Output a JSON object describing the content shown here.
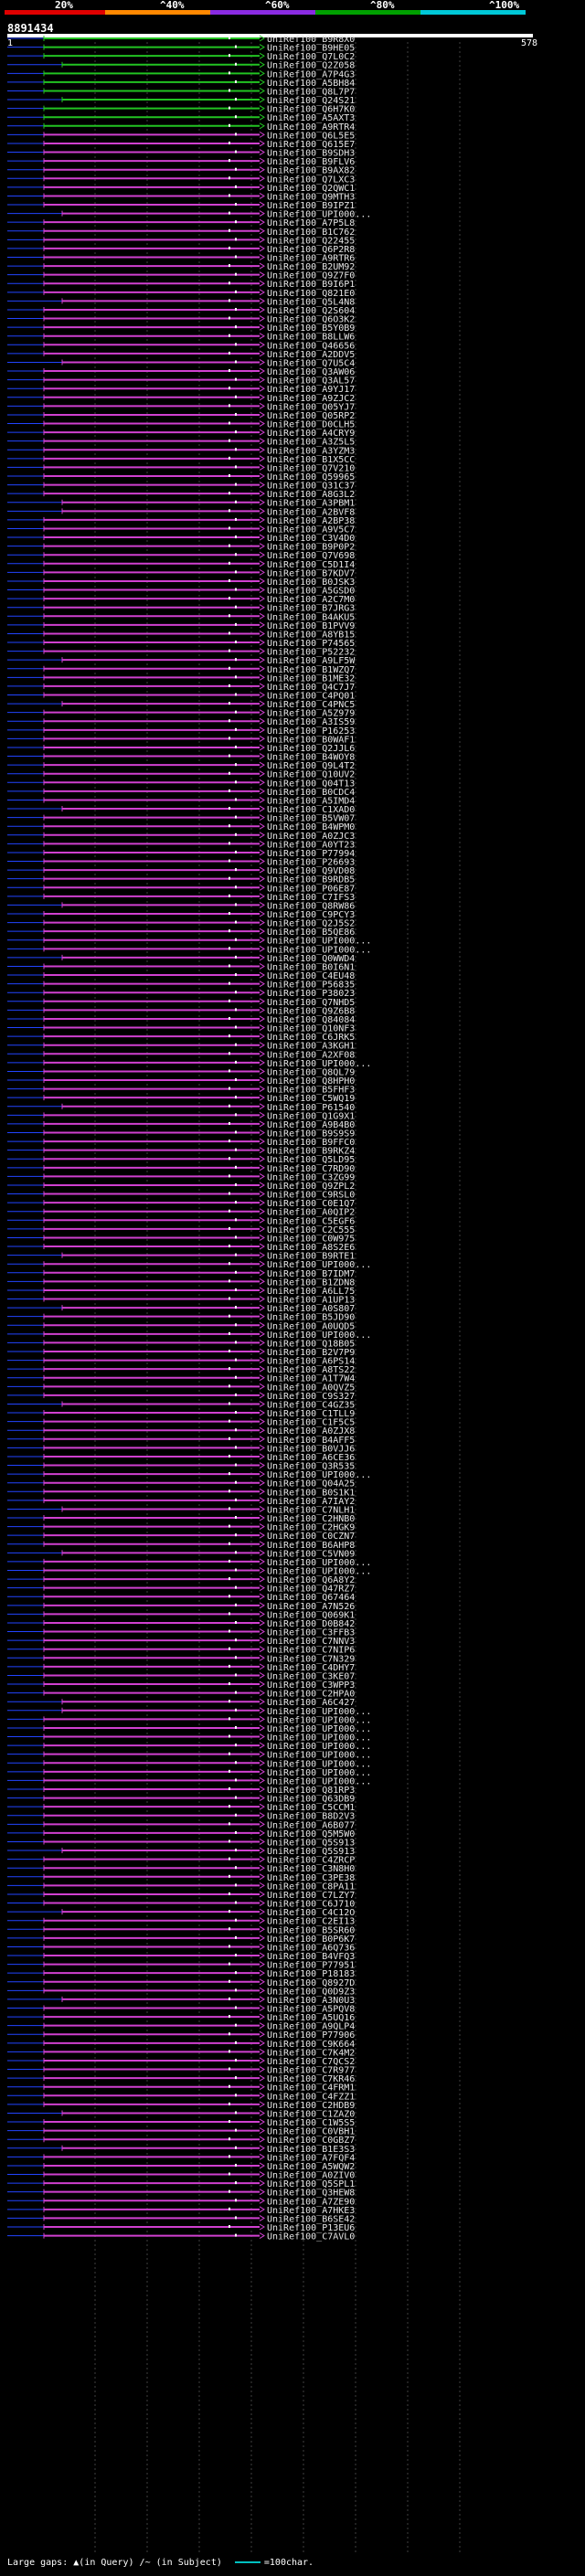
{
  "scale": {
    "ticks": [
      {
        "label": "20%",
        "color": "#e00000"
      },
      {
        "label": "^40%",
        "color": "#ff8800"
      },
      {
        "label": "^60%",
        "color": "#8a2be2"
      },
      {
        "label": "^80%",
        "color": "#00a000"
      },
      {
        "label": "^100%",
        "color": "#00c8d8"
      }
    ]
  },
  "query": {
    "id": "8891434",
    "start": "1",
    "end": "578"
  },
  "colors": {
    "green_hit": "#22c322",
    "purple_hit": "#d040d0",
    "gap": "#2244ff",
    "background": "#000000",
    "gridline": "#404040"
  },
  "hits": [
    {
      "label": "UniRef100_B9R8X0",
      "color": "green"
    },
    {
      "label": "UniRef100_B9HE05",
      "color": "green"
    },
    {
      "label": "UniRef100_Q7L0C2",
      "color": "green"
    },
    {
      "label": "UniRef100_Q2Z058",
      "color": "green"
    },
    {
      "label": "UniRef100_A7P4G3",
      "color": "green"
    },
    {
      "label": "UniRef100_A5BH84",
      "color": "green"
    },
    {
      "label": "UniRef100_Q8L7P7",
      "color": "green"
    },
    {
      "label": "UniRef100_Q24S21",
      "color": "green"
    },
    {
      "label": "UniRef100_Q6H7K0",
      "color": "green"
    },
    {
      "label": "UniRef100_A5AXT3",
      "color": "green"
    },
    {
      "label": "UniRef100_A9RTR4",
      "color": "green"
    },
    {
      "label": "UniRef100_Q6L5E5",
      "color": "purple"
    },
    {
      "label": "UniRef100_Q615E7",
      "color": "purple"
    },
    {
      "label": "UniRef100_B9SDH3",
      "color": "purple"
    },
    {
      "label": "UniRef100_B9FLV6",
      "color": "purple"
    },
    {
      "label": "UniRef100_B9AX82",
      "color": "purple"
    },
    {
      "label": "UniRef100_Q7LXC3",
      "color": "purple"
    },
    {
      "label": "UniRef100_Q2QWC1",
      "color": "purple"
    },
    {
      "label": "UniRef100_Q9MTH3",
      "color": "purple"
    },
    {
      "label": "UniRef100_B9IPZ1",
      "color": "purple"
    },
    {
      "label": "UniRef100_UPI000...",
      "color": "purple"
    },
    {
      "label": "UniRef100_A7P5L8",
      "color": "purple"
    },
    {
      "label": "UniRef100_B1C762",
      "color": "purple"
    },
    {
      "label": "UniRef100_Q22455",
      "color": "purple"
    },
    {
      "label": "UniRef100_Q6P2R8",
      "color": "purple"
    },
    {
      "label": "UniRef100_A9RTR6",
      "color": "purple"
    },
    {
      "label": "UniRef100_B2UM92",
      "color": "purple"
    },
    {
      "label": "UniRef100_Q9Z7F0",
      "color": "purple"
    },
    {
      "label": "UniRef100_B9I6P1",
      "color": "purple"
    },
    {
      "label": "UniRef100_Q821E0",
      "color": "purple"
    },
    {
      "label": "UniRef100_Q5L4N8",
      "color": "purple"
    },
    {
      "label": "UniRef100_Q2S604",
      "color": "purple"
    },
    {
      "label": "UniRef100_Q6O3K2",
      "color": "purple"
    },
    {
      "label": "UniRef100_B5Y0B9",
      "color": "purple"
    },
    {
      "label": "UniRef100_B8LLW6",
      "color": "purple"
    },
    {
      "label": "UniRef100_Q46656",
      "color": "purple"
    },
    {
      "label": "UniRef100_A2DDV5",
      "color": "purple"
    },
    {
      "label": "UniRef100_Q7U5C4",
      "color": "purple"
    },
    {
      "label": "UniRef100_Q3AW06",
      "color": "purple"
    },
    {
      "label": "UniRef100_Q3AL57",
      "color": "purple"
    },
    {
      "label": "UniRef100_A9YJ17",
      "color": "purple"
    },
    {
      "label": "UniRef100_A9ZJC2",
      "color": "purple"
    },
    {
      "label": "UniRef100_Q05YJ7",
      "color": "purple"
    },
    {
      "label": "UniRef100_Q05RP2",
      "color": "purple"
    },
    {
      "label": "UniRef100_D0CLH5",
      "color": "purple"
    },
    {
      "label": "UniRef100_A4CRY9",
      "color": "purple"
    },
    {
      "label": "UniRef100_A3Z5L5",
      "color": "purple"
    },
    {
      "label": "UniRef100_A3YZM3",
      "color": "purple"
    },
    {
      "label": "UniRef100_B1X5CC",
      "color": "purple"
    },
    {
      "label": "UniRef100_Q7V210",
      "color": "purple"
    },
    {
      "label": "UniRef100_Q59965",
      "color": "purple"
    },
    {
      "label": "UniRef100_Q31C37",
      "color": "purple"
    },
    {
      "label": "UniRef100_A8G3L2",
      "color": "purple"
    },
    {
      "label": "UniRef100_A3PBM1",
      "color": "purple"
    },
    {
      "label": "UniRef100_A2BVF8",
      "color": "purple"
    },
    {
      "label": "UniRef100_A2BP38",
      "color": "purple"
    },
    {
      "label": "UniRef100_A9V5C7",
      "color": "purple"
    },
    {
      "label": "UniRef100_C3V4D0",
      "color": "purple"
    },
    {
      "label": "UniRef100_B9P0P2",
      "color": "purple"
    },
    {
      "label": "UniRef100_Q7V698",
      "color": "purple"
    },
    {
      "label": "UniRef100_C5D1I4",
      "color": "purple"
    },
    {
      "label": "UniRef100_B7KDV7",
      "color": "purple"
    },
    {
      "label": "UniRef100_B0JSK3",
      "color": "purple"
    },
    {
      "label": "UniRef100_A5GSD0",
      "color": "purple"
    },
    {
      "label": "UniRef100_A2C7M0",
      "color": "purple"
    },
    {
      "label": "UniRef100_B7JRG3",
      "color": "purple"
    },
    {
      "label": "UniRef100_B4AKU5",
      "color": "purple"
    },
    {
      "label": "UniRef100_B1PVV9",
      "color": "purple"
    },
    {
      "label": "UniRef100_A8YB15",
      "color": "purple"
    },
    {
      "label": "UniRef100_P74565",
      "color": "purple"
    },
    {
      "label": "UniRef100_P52232",
      "color": "purple"
    },
    {
      "label": "UniRef100_A9LF5W",
      "color": "purple"
    },
    {
      "label": "UniRef100_B1WZQ7",
      "color": "purple"
    },
    {
      "label": "UniRef100_B1ME32",
      "color": "purple"
    },
    {
      "label": "UniRef100_Q4C7J7",
      "color": "purple"
    },
    {
      "label": "UniRef100_C4PQ01",
      "color": "purple"
    },
    {
      "label": "UniRef100_C4PNC5",
      "color": "purple"
    },
    {
      "label": "UniRef100_A5Z979",
      "color": "purple"
    },
    {
      "label": "UniRef100_A3IS59",
      "color": "purple"
    },
    {
      "label": "UniRef100_P16253",
      "color": "purple"
    },
    {
      "label": "UniRef100_B0WAF1",
      "color": "purple"
    },
    {
      "label": "UniRef100_Q2JJL6",
      "color": "purple"
    },
    {
      "label": "UniRef100_B4WOY8",
      "color": "purple"
    },
    {
      "label": "UniRef100_Q9L4T2",
      "color": "purple"
    },
    {
      "label": "UniRef100_Q10UV2",
      "color": "purple"
    },
    {
      "label": "UniRef100_Q04T13",
      "color": "purple"
    },
    {
      "label": "UniRef100_B0CDC4",
      "color": "purple"
    },
    {
      "label": "UniRef100_A5IMD4",
      "color": "purple"
    },
    {
      "label": "UniRef100_C1XAD0",
      "color": "purple"
    },
    {
      "label": "UniRef100_B5VW07",
      "color": "purple"
    },
    {
      "label": "UniRef100_B4WPM0",
      "color": "purple"
    },
    {
      "label": "UniRef100_A0ZJC3",
      "color": "purple"
    },
    {
      "label": "UniRef100_A0YT23",
      "color": "purple"
    },
    {
      "label": "UniRef100_P77994",
      "color": "purple"
    },
    {
      "label": "UniRef100_P26693",
      "color": "purple"
    },
    {
      "label": "UniRef100_Q9VD08",
      "color": "purple"
    },
    {
      "label": "UniRef100_B9RDB5",
      "color": "purple"
    },
    {
      "label": "UniRef100_P06E87",
      "color": "purple"
    },
    {
      "label": "UniRef100_C7IFS3",
      "color": "purple"
    },
    {
      "label": "UniRef100_Q8RW86",
      "color": "purple"
    },
    {
      "label": "UniRef100_C9PCY3",
      "color": "purple"
    },
    {
      "label": "UniRef100_Q2J5S2",
      "color": "purple"
    },
    {
      "label": "UniRef100_B5QE86",
      "color": "purple"
    },
    {
      "label": "UniRef100_UPI000...",
      "color": "purple"
    },
    {
      "label": "UniRef100_UPI000...",
      "color": "purple"
    },
    {
      "label": "UniRef100_Q0WWD4",
      "color": "purple"
    },
    {
      "label": "UniRef100_B0I6N1",
      "color": "purple"
    },
    {
      "label": "UniRef100_C4EU48",
      "color": "purple"
    },
    {
      "label": "UniRef100_P56835",
      "color": "purple"
    },
    {
      "label": "UniRef100_P38023",
      "color": "purple"
    },
    {
      "label": "UniRef100_Q7NHD5",
      "color": "purple"
    },
    {
      "label": "UniRef100_Q9Z6B8",
      "color": "purple"
    },
    {
      "label": "UniRef100_Q84084",
      "color": "purple"
    },
    {
      "label": "UniRef100_Q10NF3",
      "color": "purple"
    },
    {
      "label": "UniRef100_C6JRK5",
      "color": "purple"
    },
    {
      "label": "UniRef100_A3KGH1",
      "color": "purple"
    },
    {
      "label": "UniRef100_A2XF08",
      "color": "purple"
    },
    {
      "label": "UniRef100_UPI000...",
      "color": "purple"
    },
    {
      "label": "UniRef100_Q8QL79",
      "color": "purple"
    },
    {
      "label": "UniRef100_Q8HPH0",
      "color": "purple"
    },
    {
      "label": "UniRef100_B5FHF3",
      "color": "purple"
    },
    {
      "label": "UniRef100_C5WQ19",
      "color": "purple"
    },
    {
      "label": "UniRef100_P61540",
      "color": "purple"
    },
    {
      "label": "UniRef100_Q1G9X1",
      "color": "purple"
    },
    {
      "label": "UniRef100_A9B4B0",
      "color": "purple"
    },
    {
      "label": "UniRef100_B9S9S9",
      "color": "purple"
    },
    {
      "label": "UniRef100_B9FFC0",
      "color": "purple"
    },
    {
      "label": "UniRef100_B9RKZ4",
      "color": "purple"
    },
    {
      "label": "UniRef100_Q5LD95",
      "color": "purple"
    },
    {
      "label": "UniRef100_C7RD90",
      "color": "purple"
    },
    {
      "label": "UniRef100_C3ZG99",
      "color": "purple"
    },
    {
      "label": "UniRef100_Q9ZPL2",
      "color": "purple"
    },
    {
      "label": "UniRef100_C9RSL0",
      "color": "purple"
    },
    {
      "label": "UniRef100_C0E1Q7",
      "color": "purple"
    },
    {
      "label": "UniRef100_A0QIP2",
      "color": "purple"
    },
    {
      "label": "UniRef100_C5EGF6",
      "color": "purple"
    },
    {
      "label": "UniRef100_C2C555",
      "color": "purple"
    },
    {
      "label": "UniRef100_C0W975",
      "color": "purple"
    },
    {
      "label": "UniRef100_A8S2E6",
      "color": "purple"
    },
    {
      "label": "UniRef100_B9RTE1",
      "color": "purple"
    },
    {
      "label": "UniRef100_UPI000...",
      "color": "purple"
    },
    {
      "label": "UniRef100_B7IDM7",
      "color": "purple"
    },
    {
      "label": "UniRef100_B1ZDN8",
      "color": "purple"
    },
    {
      "label": "UniRef100_A6LL75",
      "color": "purple"
    },
    {
      "label": "UniRef100_A1UP13",
      "color": "purple"
    },
    {
      "label": "UniRef100_A0S807",
      "color": "purple"
    },
    {
      "label": "UniRef100_B5JD90",
      "color": "purple"
    },
    {
      "label": "UniRef100_A0UQD5",
      "color": "purple"
    },
    {
      "label": "UniRef100_UPI000...",
      "color": "purple"
    },
    {
      "label": "UniRef100_Q18B05",
      "color": "purple"
    },
    {
      "label": "UniRef100_B2V7P9",
      "color": "purple"
    },
    {
      "label": "UniRef100_A6PS14",
      "color": "purple"
    },
    {
      "label": "UniRef100_A8TS22",
      "color": "purple"
    },
    {
      "label": "UniRef100_A1T7W4",
      "color": "purple"
    },
    {
      "label": "UniRef100_A0QVZ5",
      "color": "purple"
    },
    {
      "label": "UniRef100_C9S327",
      "color": "purple"
    },
    {
      "label": "UniRef100_C4GZ35",
      "color": "purple"
    },
    {
      "label": "UniRef100_C1TLL9",
      "color": "purple"
    },
    {
      "label": "UniRef100_C1F5C5",
      "color": "purple"
    },
    {
      "label": "UniRef100_A0ZJX8",
      "color": "purple"
    },
    {
      "label": "UniRef100_B4AFF5",
      "color": "purple"
    },
    {
      "label": "UniRef100_B0VJJ6",
      "color": "purple"
    },
    {
      "label": "UniRef100_A6CE36",
      "color": "purple"
    },
    {
      "label": "UniRef100_Q3R535",
      "color": "purple"
    },
    {
      "label": "UniRef100_UPI000...",
      "color": "purple"
    },
    {
      "label": "UniRef100_Q04A25",
      "color": "purple"
    },
    {
      "label": "UniRef100_B0S1K1",
      "color": "purple"
    },
    {
      "label": "UniRef100_A7IAY2",
      "color": "purple"
    },
    {
      "label": "UniRef100_C7NLH1",
      "color": "purple"
    },
    {
      "label": "UniRef100_C2HNB0",
      "color": "purple"
    },
    {
      "label": "UniRef100_C2HGK9",
      "color": "purple"
    },
    {
      "label": "UniRef100_C0CZN7",
      "color": "purple"
    },
    {
      "label": "UniRef100_B6AHP8",
      "color": "purple"
    },
    {
      "label": "UniRef100_C5VN09",
      "color": "purple"
    },
    {
      "label": "UniRef100_UPI000...",
      "color": "purple"
    },
    {
      "label": "UniRef100_UPI000...",
      "color": "purple"
    },
    {
      "label": "UniRef100_Q6A8Y2",
      "color": "purple"
    },
    {
      "label": "UniRef100_Q47RZ7",
      "color": "purple"
    },
    {
      "label": "UniRef100_Q67464",
      "color": "purple"
    },
    {
      "label": "UniRef100_A7N526",
      "color": "purple"
    },
    {
      "label": "UniRef100_Q069K1",
      "color": "purple"
    },
    {
      "label": "UniRef100_D0B842",
      "color": "purple"
    },
    {
      "label": "UniRef100_C3FFB3",
      "color": "purple"
    },
    {
      "label": "UniRef100_C7NNV3",
      "color": "purple"
    },
    {
      "label": "UniRef100_C7NIP6",
      "color": "purple"
    },
    {
      "label": "UniRef100_C7N329",
      "color": "purple"
    },
    {
      "label": "UniRef100_C4DHY7",
      "color": "purple"
    },
    {
      "label": "UniRef100_C3KE07",
      "color": "purple"
    },
    {
      "label": "UniRef100_C3WPP3",
      "color": "purple"
    },
    {
      "label": "UniRef100_C2HPA0",
      "color": "purple"
    },
    {
      "label": "UniRef100_A6C427",
      "color": "purple"
    },
    {
      "label": "UniRef100_UPI000...",
      "color": "purple"
    },
    {
      "label": "UniRef100_UPI000...",
      "color": "purple"
    },
    {
      "label": "UniRef100_UPI000...",
      "color": "purple"
    },
    {
      "label": "UniRef100_UPI000...",
      "color": "purple"
    },
    {
      "label": "UniRef100_UPI000...",
      "color": "purple"
    },
    {
      "label": "UniRef100_UPI000...",
      "color": "purple"
    },
    {
      "label": "UniRef100_UPI000...",
      "color": "purple"
    },
    {
      "label": "UniRef100_UPI000...",
      "color": "purple"
    },
    {
      "label": "UniRef100_UPI000...",
      "color": "purple"
    },
    {
      "label": "UniRef100_Q81RP3",
      "color": "purple"
    },
    {
      "label": "UniRef100_Q63DB9",
      "color": "purple"
    },
    {
      "label": "UniRef100_C5CCM1",
      "color": "purple"
    },
    {
      "label": "UniRef100_B8D2V3",
      "color": "purple"
    },
    {
      "label": "UniRef100_A6B077",
      "color": "purple"
    },
    {
      "label": "UniRef100_Q5M5W0",
      "color": "purple"
    },
    {
      "label": "UniRef100_Q5S913",
      "color": "purple"
    },
    {
      "label": "UniRef100_Q5S913",
      "color": "purple"
    },
    {
      "label": "UniRef100_C4ZRCP",
      "color": "purple"
    },
    {
      "label": "UniRef100_C3N8H0",
      "color": "purple"
    },
    {
      "label": "UniRef100_C3PE38",
      "color": "purple"
    },
    {
      "label": "UniRef100_C8PA11",
      "color": "purple"
    },
    {
      "label": "UniRef100_C7LZY7",
      "color": "purple"
    },
    {
      "label": "UniRef100_C6J710",
      "color": "purple"
    },
    {
      "label": "UniRef100_C4C12O",
      "color": "purple"
    },
    {
      "label": "UniRef100_C2EI13",
      "color": "purple"
    },
    {
      "label": "UniRef100_B5SR60",
      "color": "purple"
    },
    {
      "label": "UniRef100_B0P6K7",
      "color": "purple"
    },
    {
      "label": "UniRef100_A6Q736",
      "color": "purple"
    },
    {
      "label": "UniRef100_B4VFQ3",
      "color": "purple"
    },
    {
      "label": "UniRef100_P77951",
      "color": "purple"
    },
    {
      "label": "UniRef100_P18183",
      "color": "purple"
    },
    {
      "label": "UniRef100_Q8927D",
      "color": "purple"
    },
    {
      "label": "UniRef100_Q0D9Z3",
      "color": "purple"
    },
    {
      "label": "UniRef100_A3N0U3",
      "color": "purple"
    },
    {
      "label": "UniRef100_A5PQV8",
      "color": "purple"
    },
    {
      "label": "UniRef100_A5UQ16",
      "color": "purple"
    },
    {
      "label": "UniRef100_A9QLP4",
      "color": "purple"
    },
    {
      "label": "UniRef100_P77906",
      "color": "purple"
    },
    {
      "label": "UniRef100_C9K664",
      "color": "purple"
    },
    {
      "label": "UniRef100_C7K4M2",
      "color": "purple"
    },
    {
      "label": "UniRef100_C7QCS2",
      "color": "purple"
    },
    {
      "label": "UniRef100_C7R977",
      "color": "purple"
    },
    {
      "label": "UniRef100_C7KR46",
      "color": "purple"
    },
    {
      "label": "UniRef100_C4FRM1",
      "color": "purple"
    },
    {
      "label": "UniRef100_C4FZZ1",
      "color": "purple"
    },
    {
      "label": "UniRef100_C2HDB9",
      "color": "purple"
    },
    {
      "label": "UniRef100_C1ZAZ0",
      "color": "purple"
    },
    {
      "label": "UniRef100_C1W5S5",
      "color": "purple"
    },
    {
      "label": "UniRef100_C0VBH1",
      "color": "purple"
    },
    {
      "label": "UniRef100_C0GBZ7",
      "color": "purple"
    },
    {
      "label": "UniRef100_B1E3S3",
      "color": "purple"
    },
    {
      "label": "UniRef100_A7FQF4",
      "color": "purple"
    },
    {
      "label": "UniRef100_A5WQW2",
      "color": "purple"
    },
    {
      "label": "UniRef100_A0ZIV0",
      "color": "purple"
    },
    {
      "label": "UniRef100_Q5SPL1",
      "color": "purple"
    },
    {
      "label": "UniRef100_Q3HEW8",
      "color": "purple"
    },
    {
      "label": "UniRef100_A7ZE90",
      "color": "purple"
    },
    {
      "label": "UniRef100_A7HKE3",
      "color": "purple"
    },
    {
      "label": "UniRef100_B6SE42",
      "color": "purple"
    },
    {
      "label": "UniRef100_P13EU6",
      "color": "purple"
    },
    {
      "label": "UniRef100_C7AVL0",
      "color": "purple"
    }
  ],
  "legend": {
    "large_gaps_label": "Large gaps:",
    "in_query": "(in Query)",
    "in_subject": "/~ (in Subject)",
    "scale_label": "=100char."
  }
}
